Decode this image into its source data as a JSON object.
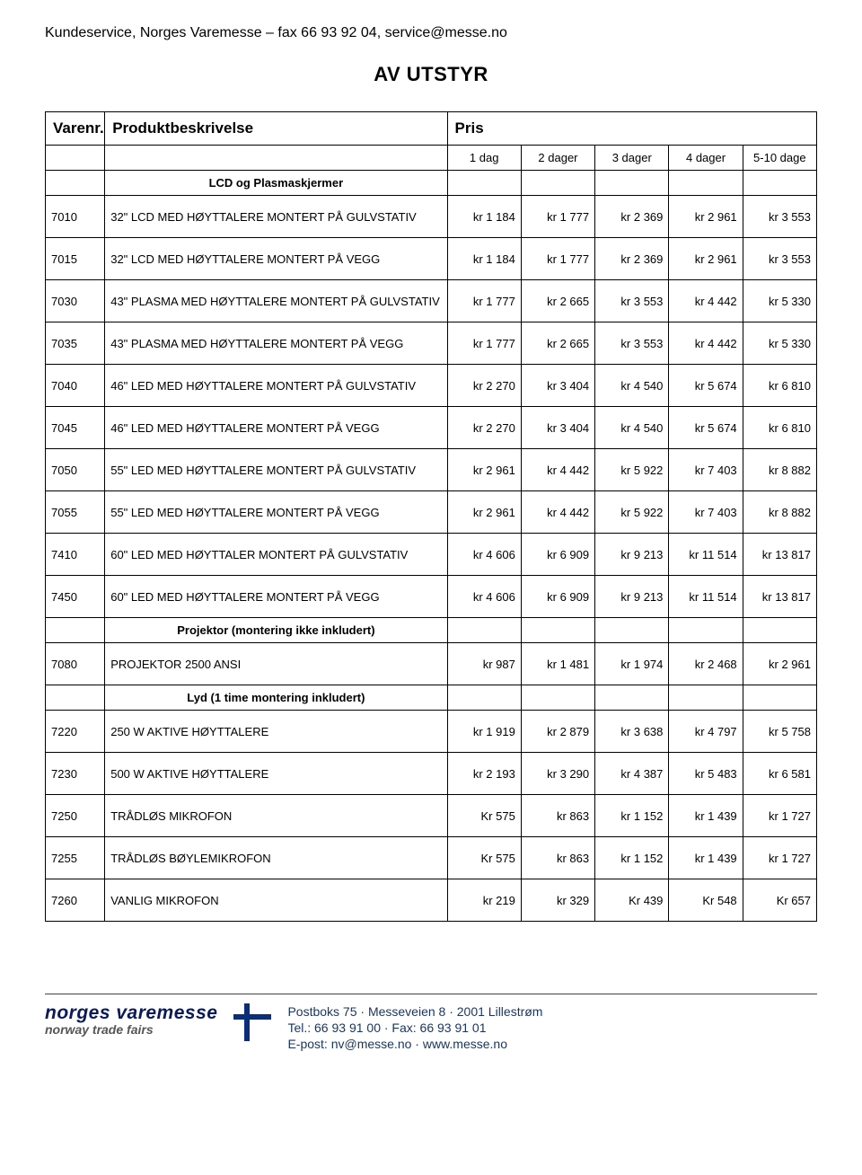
{
  "header_line": "Kundeservice, Norges Varemesse – fax 66 93 92 04, service@messe.no",
  "page_title": "AV UTSTYR",
  "table": {
    "col_headers": {
      "varenr": "Varenr.",
      "desc": "Produktbeskrivelse",
      "price": "Pris"
    },
    "sub_headers": [
      "1 dag",
      "2 dager",
      "3 dager",
      "4 dager",
      "5-10 dage"
    ],
    "sections": [
      {
        "title": "LCD og Plasmaskjermer",
        "rows": [
          {
            "code": "7010",
            "desc": "32\" LCD MED HØYTTALERE MONTERT PÅ GULVSTATIV",
            "p": [
              "kr 1 184",
              "kr 1 777",
              "kr 2 369",
              "kr 2 961",
              "kr 3 553"
            ]
          },
          {
            "code": "7015",
            "desc": "32\" LCD MED HØYTTALERE MONTERT PÅ VEGG",
            "p": [
              "kr 1 184",
              "kr 1 777",
              "kr 2 369",
              "kr 2 961",
              "kr 3 553"
            ]
          },
          {
            "code": "7030",
            "desc": "43\" PLASMA MED HØYTTALERE MONTERT PÅ GULVSTATIV",
            "p": [
              "kr 1 777",
              "kr 2 665",
              "kr 3 553",
              "kr 4 442",
              "kr 5 330"
            ]
          },
          {
            "code": "7035",
            "desc": "43\" PLASMA MED HØYTTALERE MONTERT PÅ VEGG",
            "p": [
              "kr 1 777",
              "kr 2 665",
              "kr 3 553",
              "kr 4 442",
              "kr 5 330"
            ]
          },
          {
            "code": "7040",
            "desc": "46\" LED MED HØYTTALERE MONTERT PÅ GULVSTATIV",
            "p": [
              "kr 2 270",
              "kr 3 404",
              "kr 4 540",
              "kr 5 674",
              "kr 6 810"
            ]
          },
          {
            "code": "7045",
            "desc": "46\" LED MED HØYTTALERE MONTERT PÅ VEGG",
            "p": [
              "kr 2 270",
              "kr 3 404",
              "kr 4 540",
              "kr 5 674",
              "kr 6 810"
            ]
          },
          {
            "code": "7050",
            "desc": "55\" LED MED HØYTTALERE MONTERT PÅ GULVSTATIV",
            "p": [
              "kr 2 961",
              "kr 4 442",
              "kr 5 922",
              "kr 7 403",
              "kr 8 882"
            ]
          },
          {
            "code": "7055",
            "desc": "55\" LED MED HØYTTALERE MONTERT PÅ VEGG",
            "p": [
              "kr 2 961",
              "kr 4 442",
              "kr 5 922",
              "kr 7 403",
              "kr 8 882"
            ]
          },
          {
            "code": "7410",
            "desc": "60\" LED MED HØYTTALER MONTERT PÅ GULVSTATIV",
            "p": [
              "kr 4 606",
              "kr 6 909",
              "kr 9 213",
              "kr 11 514",
              "kr 13 817"
            ]
          },
          {
            "code": "7450",
            "desc": "60\" LED MED HØYTTALERE MONTERT PÅ VEGG",
            "p": [
              "kr 4 606",
              "kr 6 909",
              "kr 9 213",
              "kr 11 514",
              "kr 13 817"
            ]
          }
        ]
      },
      {
        "title": "Projektor (montering ikke inkludert)",
        "rows": [
          {
            "code": "7080",
            "desc": "PROJEKTOR 2500 ANSI",
            "p": [
              "kr 987",
              "kr 1 481",
              "kr 1 974",
              "kr 2 468",
              "kr 2 961"
            ]
          }
        ]
      },
      {
        "title": "Lyd (1 time montering inkludert)",
        "rows": [
          {
            "code": "7220",
            "desc": "250 W AKTIVE HØYTTALERE",
            "p": [
              "kr 1 919",
              "kr 2 879",
              "kr 3 638",
              "kr 4 797",
              "kr 5 758"
            ]
          },
          {
            "code": "7230",
            "desc": "500 W AKTIVE HØYTTALERE",
            "p": [
              "kr 2 193",
              "kr 3 290",
              "kr 4 387",
              "kr 5 483",
              "kr 6 581"
            ]
          },
          {
            "code": "7250",
            "desc": "TRÅDLØS MIKROFON",
            "p": [
              "Kr  575",
              "kr  863",
              "kr 1 152",
              "kr 1 439",
              "kr 1 727"
            ]
          },
          {
            "code": "7255",
            "desc": "TRÅDLØS BØYLEMIKROFON",
            "p": [
              "Kr  575",
              "kr  863",
              "kr 1 152",
              "kr 1 439",
              "kr 1 727"
            ]
          },
          {
            "code": "7260",
            "desc": "VANLIG MIKROFON",
            "p": [
              "kr  219",
              "kr  329",
              "Kr  439",
              "Kr  548",
              "Kr  657"
            ]
          }
        ]
      }
    ]
  },
  "footer": {
    "brand1": "norges varemesse",
    "brand2": "norway trade fairs",
    "addr": "Postboks 75 · Messeveien 8 · 2001 Lillestrøm",
    "tel": "Tel.: 66 93 91 00 · Fax: 66 93 91 01",
    "email": "E-post: nv@messe.no · www.messe.no"
  },
  "style": {
    "background_color": "#ffffff",
    "text_color": "#000000",
    "border_color": "#000000",
    "brand_color": "#0a1a5a",
    "font_family": "Arial, Helvetica, sans-serif",
    "header_fontsize_pt": 12,
    "title_fontsize_pt": 16,
    "table_fontsize_pt": 10,
    "section_head_fontsize_pt": 13
  }
}
